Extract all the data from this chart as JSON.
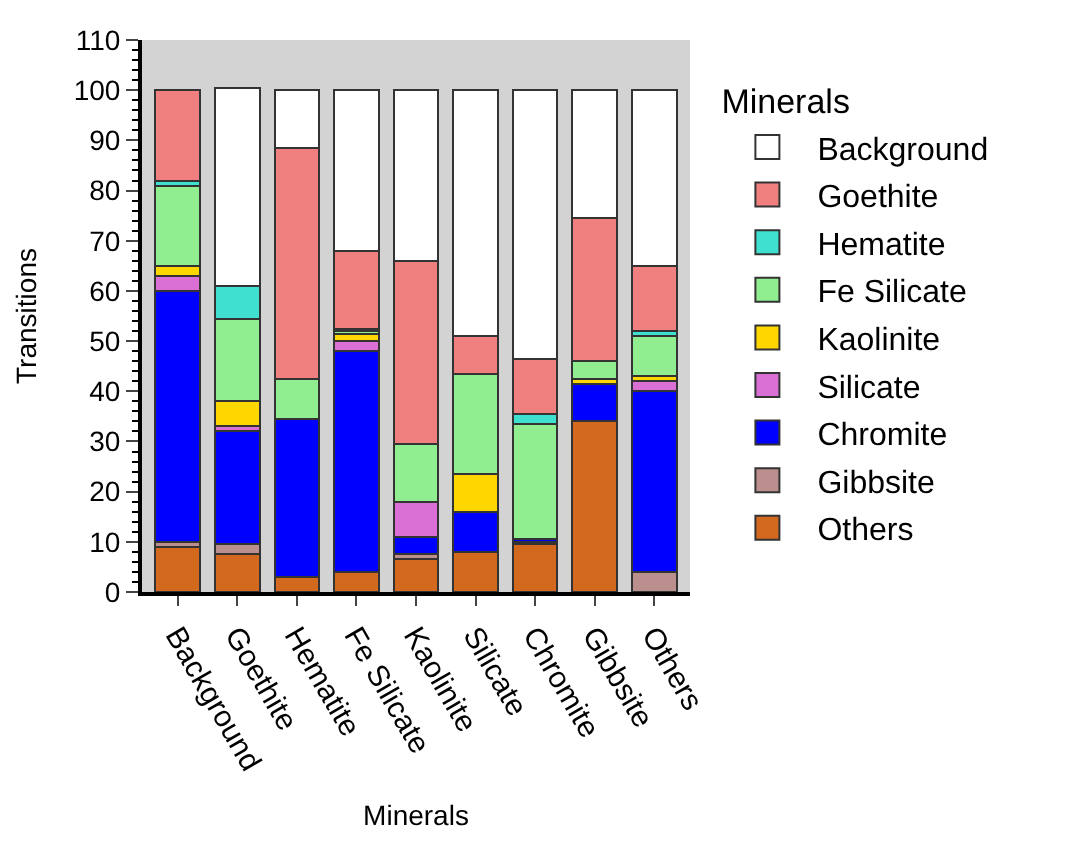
{
  "chart_data": {
    "type": "bar",
    "stacked": true,
    "xlabel": "Minerals",
    "ylabel": "Transitions",
    "legend_title": "Minerals",
    "legend": "right",
    "grid": false,
    "categories": [
      "Background",
      "Goethite",
      "Hematite",
      "Fe Silicate",
      "Kaolinite",
      "Silicate",
      "Chromite",
      "Gibbsite",
      "Others"
    ],
    "ylim": [
      0,
      110
    ],
    "yticks": [
      0,
      10,
      20,
      30,
      40,
      50,
      60,
      70,
      80,
      90,
      100,
      110
    ],
    "series": [
      {
        "name": "Others",
        "color": "#d2691e",
        "values": [
          9,
          7.5,
          3,
          4,
          6.5,
          8,
          9.5,
          34,
          0
        ]
      },
      {
        "name": "Gibbsite",
        "color": "#bc8f8f",
        "values": [
          1,
          2,
          0,
          0,
          1,
          0,
          0.5,
          0,
          4
        ]
      },
      {
        "name": "Chromite",
        "color": "#0000ff",
        "values": [
          50,
          22.5,
          31.5,
          44,
          3.5,
          8,
          0.5,
          7.5,
          36
        ]
      },
      {
        "name": "Silicate",
        "color": "#da70d6",
        "values": [
          3,
          1,
          0,
          2,
          7,
          0,
          0,
          0,
          2
        ]
      },
      {
        "name": "Kaolinite",
        "color": "#ffd700",
        "values": [
          2,
          5,
          0,
          1.5,
          0,
          7.5,
          0,
          1,
          1
        ]
      },
      {
        "name": "Fe Silicate",
        "color": "#90ee90",
        "values": [
          16,
          16.5,
          8,
          0.5,
          11.5,
          20,
          23,
          3.5,
          8
        ]
      },
      {
        "name": "Hematite",
        "color": "#40e0d0",
        "values": [
          1,
          6.5,
          0,
          0.5,
          0,
          0,
          2,
          0,
          1
        ]
      },
      {
        "name": "Goethite",
        "color": "#f08080",
        "values": [
          18,
          0,
          46,
          15.5,
          36.5,
          7.5,
          11,
          28.5,
          13
        ]
      },
      {
        "name": "Background",
        "color": "#ffffff",
        "values": [
          0,
          39.5,
          11.5,
          32,
          34,
          49,
          53.5,
          25.5,
          35
        ]
      }
    ]
  }
}
